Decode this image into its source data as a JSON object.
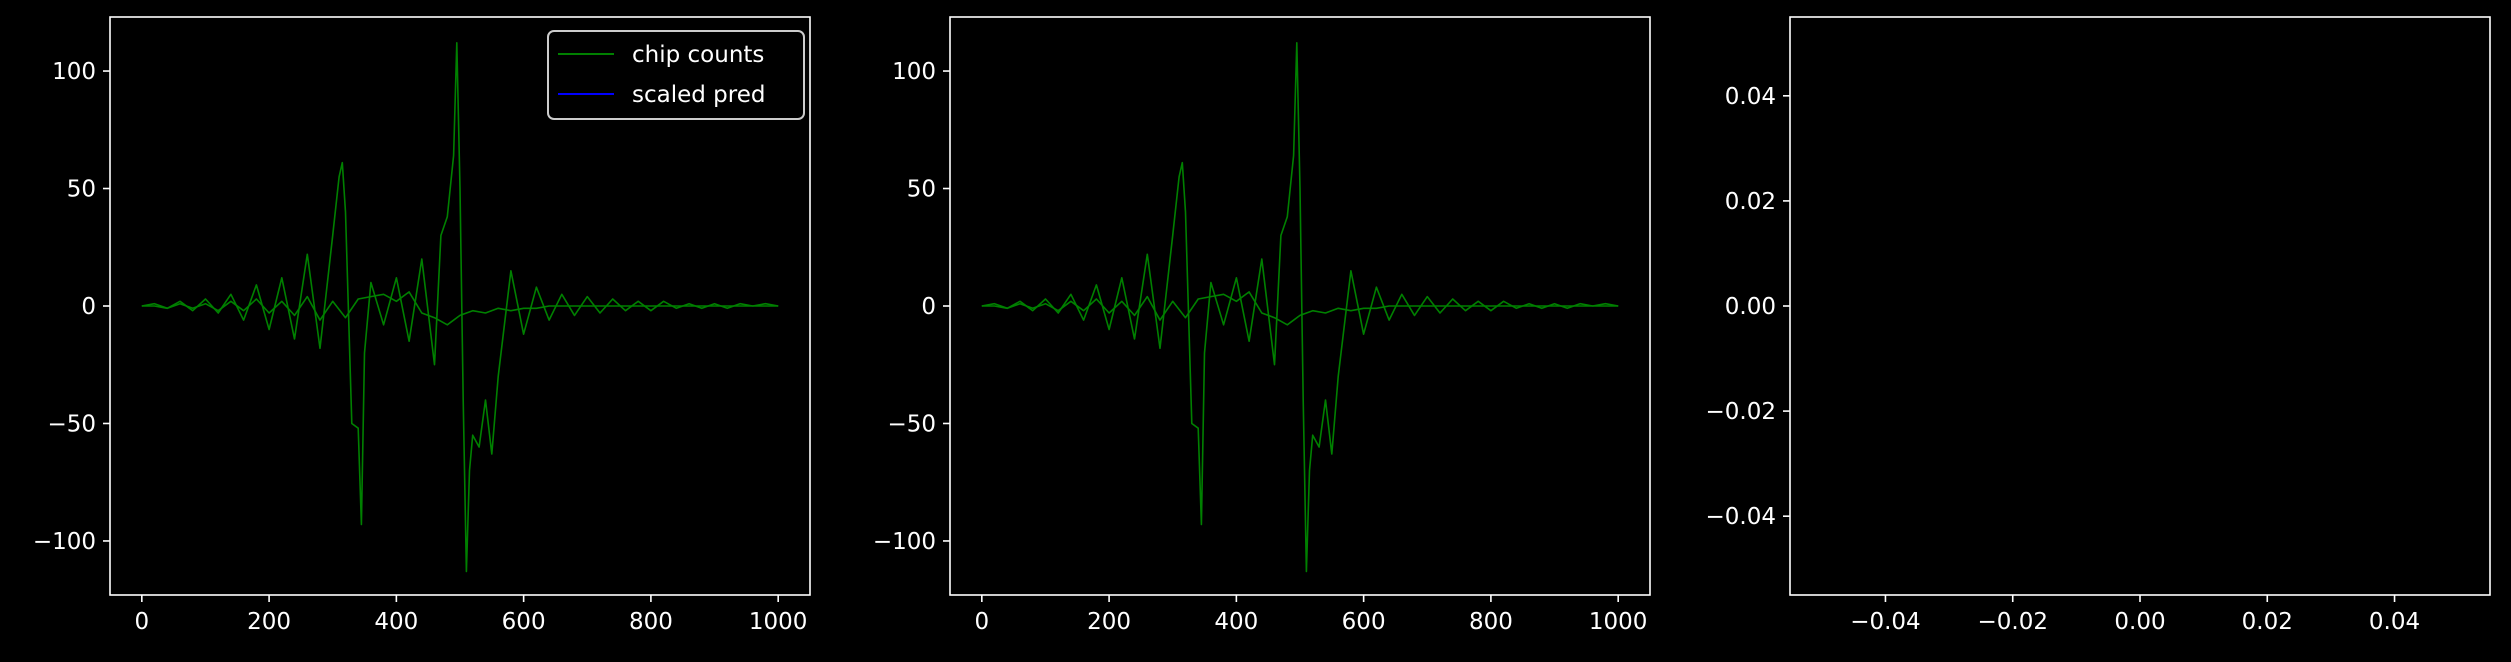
{
  "figure": {
    "background": "#000000",
    "foreground": "#ffffff"
  },
  "chart_data": [
    {
      "type": "line",
      "title": "",
      "xlabel": "",
      "ylabel": "",
      "xlim": [
        -50,
        1050
      ],
      "ylim": [
        -123,
        123
      ],
      "xticks": [
        0,
        200,
        400,
        600,
        800,
        1000
      ],
      "xtick_labels": [
        "0",
        "200",
        "400",
        "600",
        "800",
        "1000"
      ],
      "yticks": [
        100,
        50,
        0,
        -50,
        -100
      ],
      "ytick_labels": [
        "100",
        "50",
        "0",
        "−50",
        "−100"
      ],
      "legend": {
        "placement": "top-right",
        "entries": [
          {
            "label": "chip counts",
            "color": "#008000"
          },
          {
            "label": "scaled pred",
            "color": "#0000ff"
          }
        ]
      },
      "series": [
        {
          "name": "chip counts",
          "color": "#008000",
          "x": [
            0,
            20,
            40,
            60,
            80,
            100,
            120,
            140,
            160,
            180,
            200,
            220,
            240,
            260,
            280,
            300,
            310,
            315,
            320,
            330,
            340,
            345,
            350,
            360,
            380,
            400,
            420,
            440,
            460,
            470,
            480,
            490,
            495,
            500,
            505,
            510,
            515,
            520,
            530,
            540,
            550,
            560,
            580,
            600,
            620,
            640,
            660,
            680,
            700,
            720,
            740,
            760,
            780,
            800,
            820,
            840,
            860,
            880,
            900,
            920,
            940,
            960,
            980,
            1000
          ],
          "values": [
            0,
            1,
            -1,
            2,
            -2,
            3,
            -3,
            5,
            -6,
            9,
            -10,
            12,
            -14,
            22,
            -18,
            30,
            55,
            61,
            40,
            -50,
            -52,
            -93,
            -20,
            10,
            -8,
            12,
            -15,
            20,
            -25,
            30,
            38,
            64,
            112,
            50,
            -40,
            -113,
            -70,
            -55,
            -60,
            -40,
            -63,
            -30,
            15,
            -12,
            8,
            -6,
            5,
            -4,
            4,
            -3,
            3,
            -2,
            2,
            -2,
            2,
            -1,
            1,
            -1,
            1,
            -1,
            1,
            0,
            1,
            0
          ]
        },
        {
          "name": "chip counts",
          "color": "#008000",
          "x": [
            0,
            20,
            40,
            60,
            80,
            100,
            120,
            140,
            160,
            180,
            200,
            220,
            240,
            260,
            280,
            300,
            320,
            340,
            360,
            380,
            400,
            420,
            440,
            460,
            480,
            500,
            520,
            540,
            560,
            580,
            600,
            620,
            640,
            660,
            680,
            700,
            720,
            740,
            760,
            780,
            800,
            820,
            840,
            860,
            880,
            900,
            920,
            940,
            960,
            980,
            1000
          ],
          "values": [
            0,
            0,
            -1,
            1,
            -1,
            1,
            -2,
            2,
            -2,
            3,
            -3,
            2,
            -4,
            4,
            -6,
            2,
            -5,
            3,
            4,
            5,
            2,
            6,
            -3,
            -5,
            -8,
            -4,
            -2,
            -3,
            -1,
            -2,
            -1,
            -1,
            0,
            0,
            0,
            0,
            0,
            0,
            0,
            0,
            0,
            0,
            0,
            0,
            0,
            0,
            0,
            0,
            0,
            0,
            0
          ]
        },
        {
          "name": "scaled pred",
          "color": "#0000ff",
          "x": [],
          "values": []
        }
      ]
    },
    {
      "type": "line",
      "title": "",
      "xlabel": "",
      "ylabel": "",
      "xlim": [
        -50,
        1050
      ],
      "ylim": [
        -123,
        123
      ],
      "xticks": [
        0,
        200,
        400,
        600,
        800,
        1000
      ],
      "xtick_labels": [
        "0",
        "200",
        "400",
        "600",
        "800",
        "1000"
      ],
      "yticks": [
        100,
        50,
        0,
        -50,
        -100
      ],
      "ytick_labels": [
        "100",
        "50",
        "0",
        "−50",
        "−100"
      ],
      "series": [
        {
          "color": "#008000",
          "x": [
            0,
            20,
            40,
            60,
            80,
            100,
            120,
            140,
            160,
            180,
            200,
            220,
            240,
            260,
            280,
            300,
            310,
            315,
            320,
            330,
            340,
            345,
            350,
            360,
            380,
            400,
            420,
            440,
            460,
            470,
            480,
            490,
            495,
            500,
            505,
            510,
            515,
            520,
            530,
            540,
            550,
            560,
            580,
            600,
            620,
            640,
            660,
            680,
            700,
            720,
            740,
            760,
            780,
            800,
            820,
            840,
            860,
            880,
            900,
            920,
            940,
            960,
            980,
            1000
          ],
          "values": [
            0,
            1,
            -1,
            2,
            -2,
            3,
            -3,
            5,
            -6,
            9,
            -10,
            12,
            -14,
            22,
            -18,
            30,
            55,
            61,
            40,
            -50,
            -52,
            -93,
            -20,
            10,
            -8,
            12,
            -15,
            20,
            -25,
            30,
            38,
            64,
            112,
            50,
            -40,
            -113,
            -70,
            -55,
            -60,
            -40,
            -63,
            -30,
            15,
            -12,
            8,
            -6,
            5,
            -4,
            4,
            -3,
            3,
            -2,
            2,
            -2,
            2,
            -1,
            1,
            -1,
            1,
            -1,
            1,
            0,
            1,
            0
          ]
        },
        {
          "color": "#008000",
          "x": [
            0,
            20,
            40,
            60,
            80,
            100,
            120,
            140,
            160,
            180,
            200,
            220,
            240,
            260,
            280,
            300,
            320,
            340,
            360,
            380,
            400,
            420,
            440,
            460,
            480,
            500,
            520,
            540,
            560,
            580,
            600,
            620,
            640,
            660,
            680,
            700,
            720,
            740,
            760,
            780,
            800,
            820,
            840,
            860,
            880,
            900,
            920,
            940,
            960,
            980,
            1000
          ],
          "values": [
            0,
            0,
            -1,
            1,
            -1,
            1,
            -2,
            2,
            -2,
            3,
            -3,
            2,
            -4,
            4,
            -6,
            2,
            -5,
            3,
            4,
            5,
            2,
            6,
            -3,
            -5,
            -8,
            -4,
            -2,
            -3,
            -1,
            -2,
            -1,
            -1,
            0,
            0,
            0,
            0,
            0,
            0,
            0,
            0,
            0,
            0,
            0,
            0,
            0,
            0,
            0,
            0,
            0,
            0,
            0
          ]
        }
      ]
    },
    {
      "type": "line",
      "title": "",
      "xlabel": "",
      "ylabel": "",
      "xlim": [
        -0.055,
        0.055
      ],
      "ylim": [
        -0.055,
        0.055
      ],
      "xticks": [
        -0.04,
        -0.02,
        0.0,
        0.02,
        0.04
      ],
      "xtick_labels": [
        "−0.04",
        "−0.02",
        "0.00",
        "0.02",
        "0.04"
      ],
      "yticks": [
        0.04,
        0.02,
        0.0,
        -0.02,
        -0.04
      ],
      "ytick_labels": [
        "0.04",
        "0.02",
        "0.00",
        "−0.02",
        "−0.04"
      ],
      "series": []
    }
  ]
}
